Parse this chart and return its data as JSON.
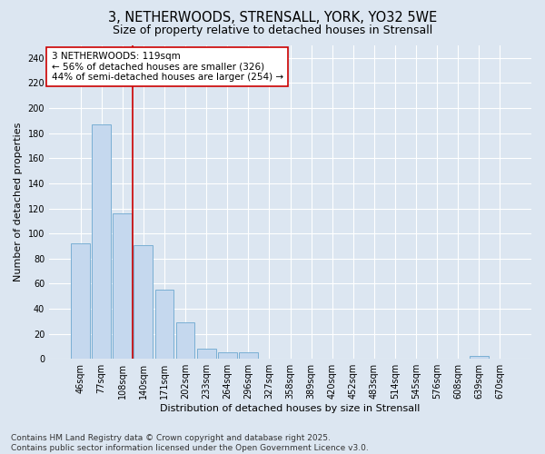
{
  "title_line1": "3, NETHERWOODS, STRENSALL, YORK, YO32 5WE",
  "title_line2": "Size of property relative to detached houses in Strensall",
  "xlabel": "Distribution of detached houses by size in Strensall",
  "ylabel": "Number of detached properties",
  "categories": [
    "46sqm",
    "77sqm",
    "108sqm",
    "140sqm",
    "171sqm",
    "202sqm",
    "233sqm",
    "264sqm",
    "296sqm",
    "327sqm",
    "358sqm",
    "389sqm",
    "420sqm",
    "452sqm",
    "483sqm",
    "514sqm",
    "545sqm",
    "576sqm",
    "608sqm",
    "639sqm",
    "670sqm"
  ],
  "values": [
    92,
    187,
    116,
    91,
    55,
    29,
    8,
    5,
    5,
    0,
    0,
    0,
    0,
    0,
    0,
    0,
    0,
    0,
    0,
    2,
    0
  ],
  "bar_color": "#c5d8ee",
  "bar_edge_color": "#7aafd4",
  "background_color": "#dce6f1",
  "grid_color": "#ffffff",
  "vline_x": 2.5,
  "vline_color": "#cc0000",
  "annotation_text": "3 NETHERWOODS: 119sqm\n← 56% of detached houses are smaller (326)\n44% of semi-detached houses are larger (254) →",
  "annotation_box_color": "#ffffff",
  "annotation_box_edge": "#cc0000",
  "ylim": [
    0,
    250
  ],
  "yticks": [
    0,
    20,
    40,
    60,
    80,
    100,
    120,
    140,
    160,
    180,
    200,
    220,
    240
  ],
  "footnote": "Contains HM Land Registry data © Crown copyright and database right 2025.\nContains public sector information licensed under the Open Government Licence v3.0.",
  "title_fontsize": 10.5,
  "subtitle_fontsize": 9,
  "axis_label_fontsize": 8,
  "tick_fontsize": 7,
  "annotation_fontsize": 7.5,
  "footnote_fontsize": 6.5
}
